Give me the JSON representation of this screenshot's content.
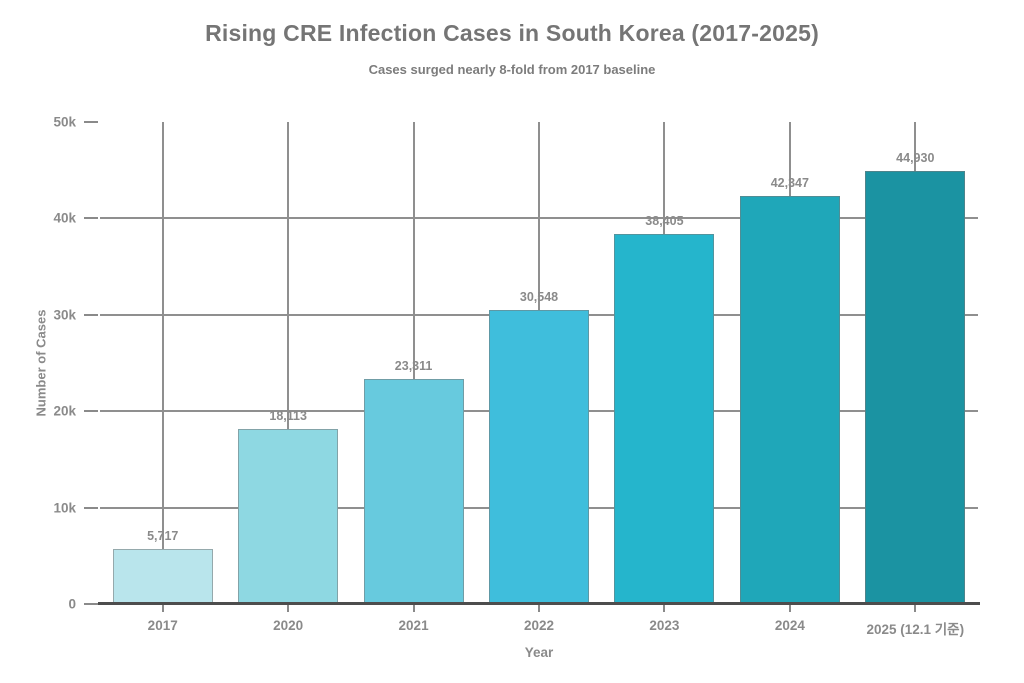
{
  "chart_data": {
    "type": "bar",
    "title": "Rising CRE Infection Cases in South Korea (2017-2025)",
    "subtitle": "Cases surged nearly 8-fold from 2017 baseline",
    "xlabel": "Year",
    "ylabel": "Number of Cases",
    "categories": [
      "2017",
      "2020",
      "2021",
      "2022",
      "2023",
      "2024",
      "2025 (12.1 기준)"
    ],
    "values": [
      5717,
      18113,
      23311,
      30548,
      38405,
      42347,
      44930
    ],
    "value_labels": [
      "5,717",
      "18,113",
      "23,311",
      "30,548",
      "38,405",
      "42,347",
      "44,930"
    ],
    "bar_colors": [
      "#b9e5ec",
      "#8ed8e2",
      "#67cade",
      "#3fbedc",
      "#25b5cc",
      "#1fa7b9",
      "#1b93a2"
    ],
    "ylim": [
      0,
      50000
    ],
    "yticks": [
      {
        "value": 0,
        "label": "0"
      },
      {
        "value": 10000,
        "label": "10k"
      },
      {
        "value": 20000,
        "label": "20k"
      },
      {
        "value": 30000,
        "label": "30k"
      },
      {
        "value": 40000,
        "label": "40k"
      },
      {
        "value": 50000,
        "label": "50k"
      }
    ],
    "grid": true,
    "legend": "none",
    "styles": {
      "background": "#ffffff",
      "grid_color": "#8f8f8f",
      "axis_color": "#4d4d4d",
      "tick_color": "#8a8a8a",
      "text_color": "#8a8a8a",
      "title_color": "#757575",
      "bar_edge_color": "#7a7a7a"
    }
  }
}
